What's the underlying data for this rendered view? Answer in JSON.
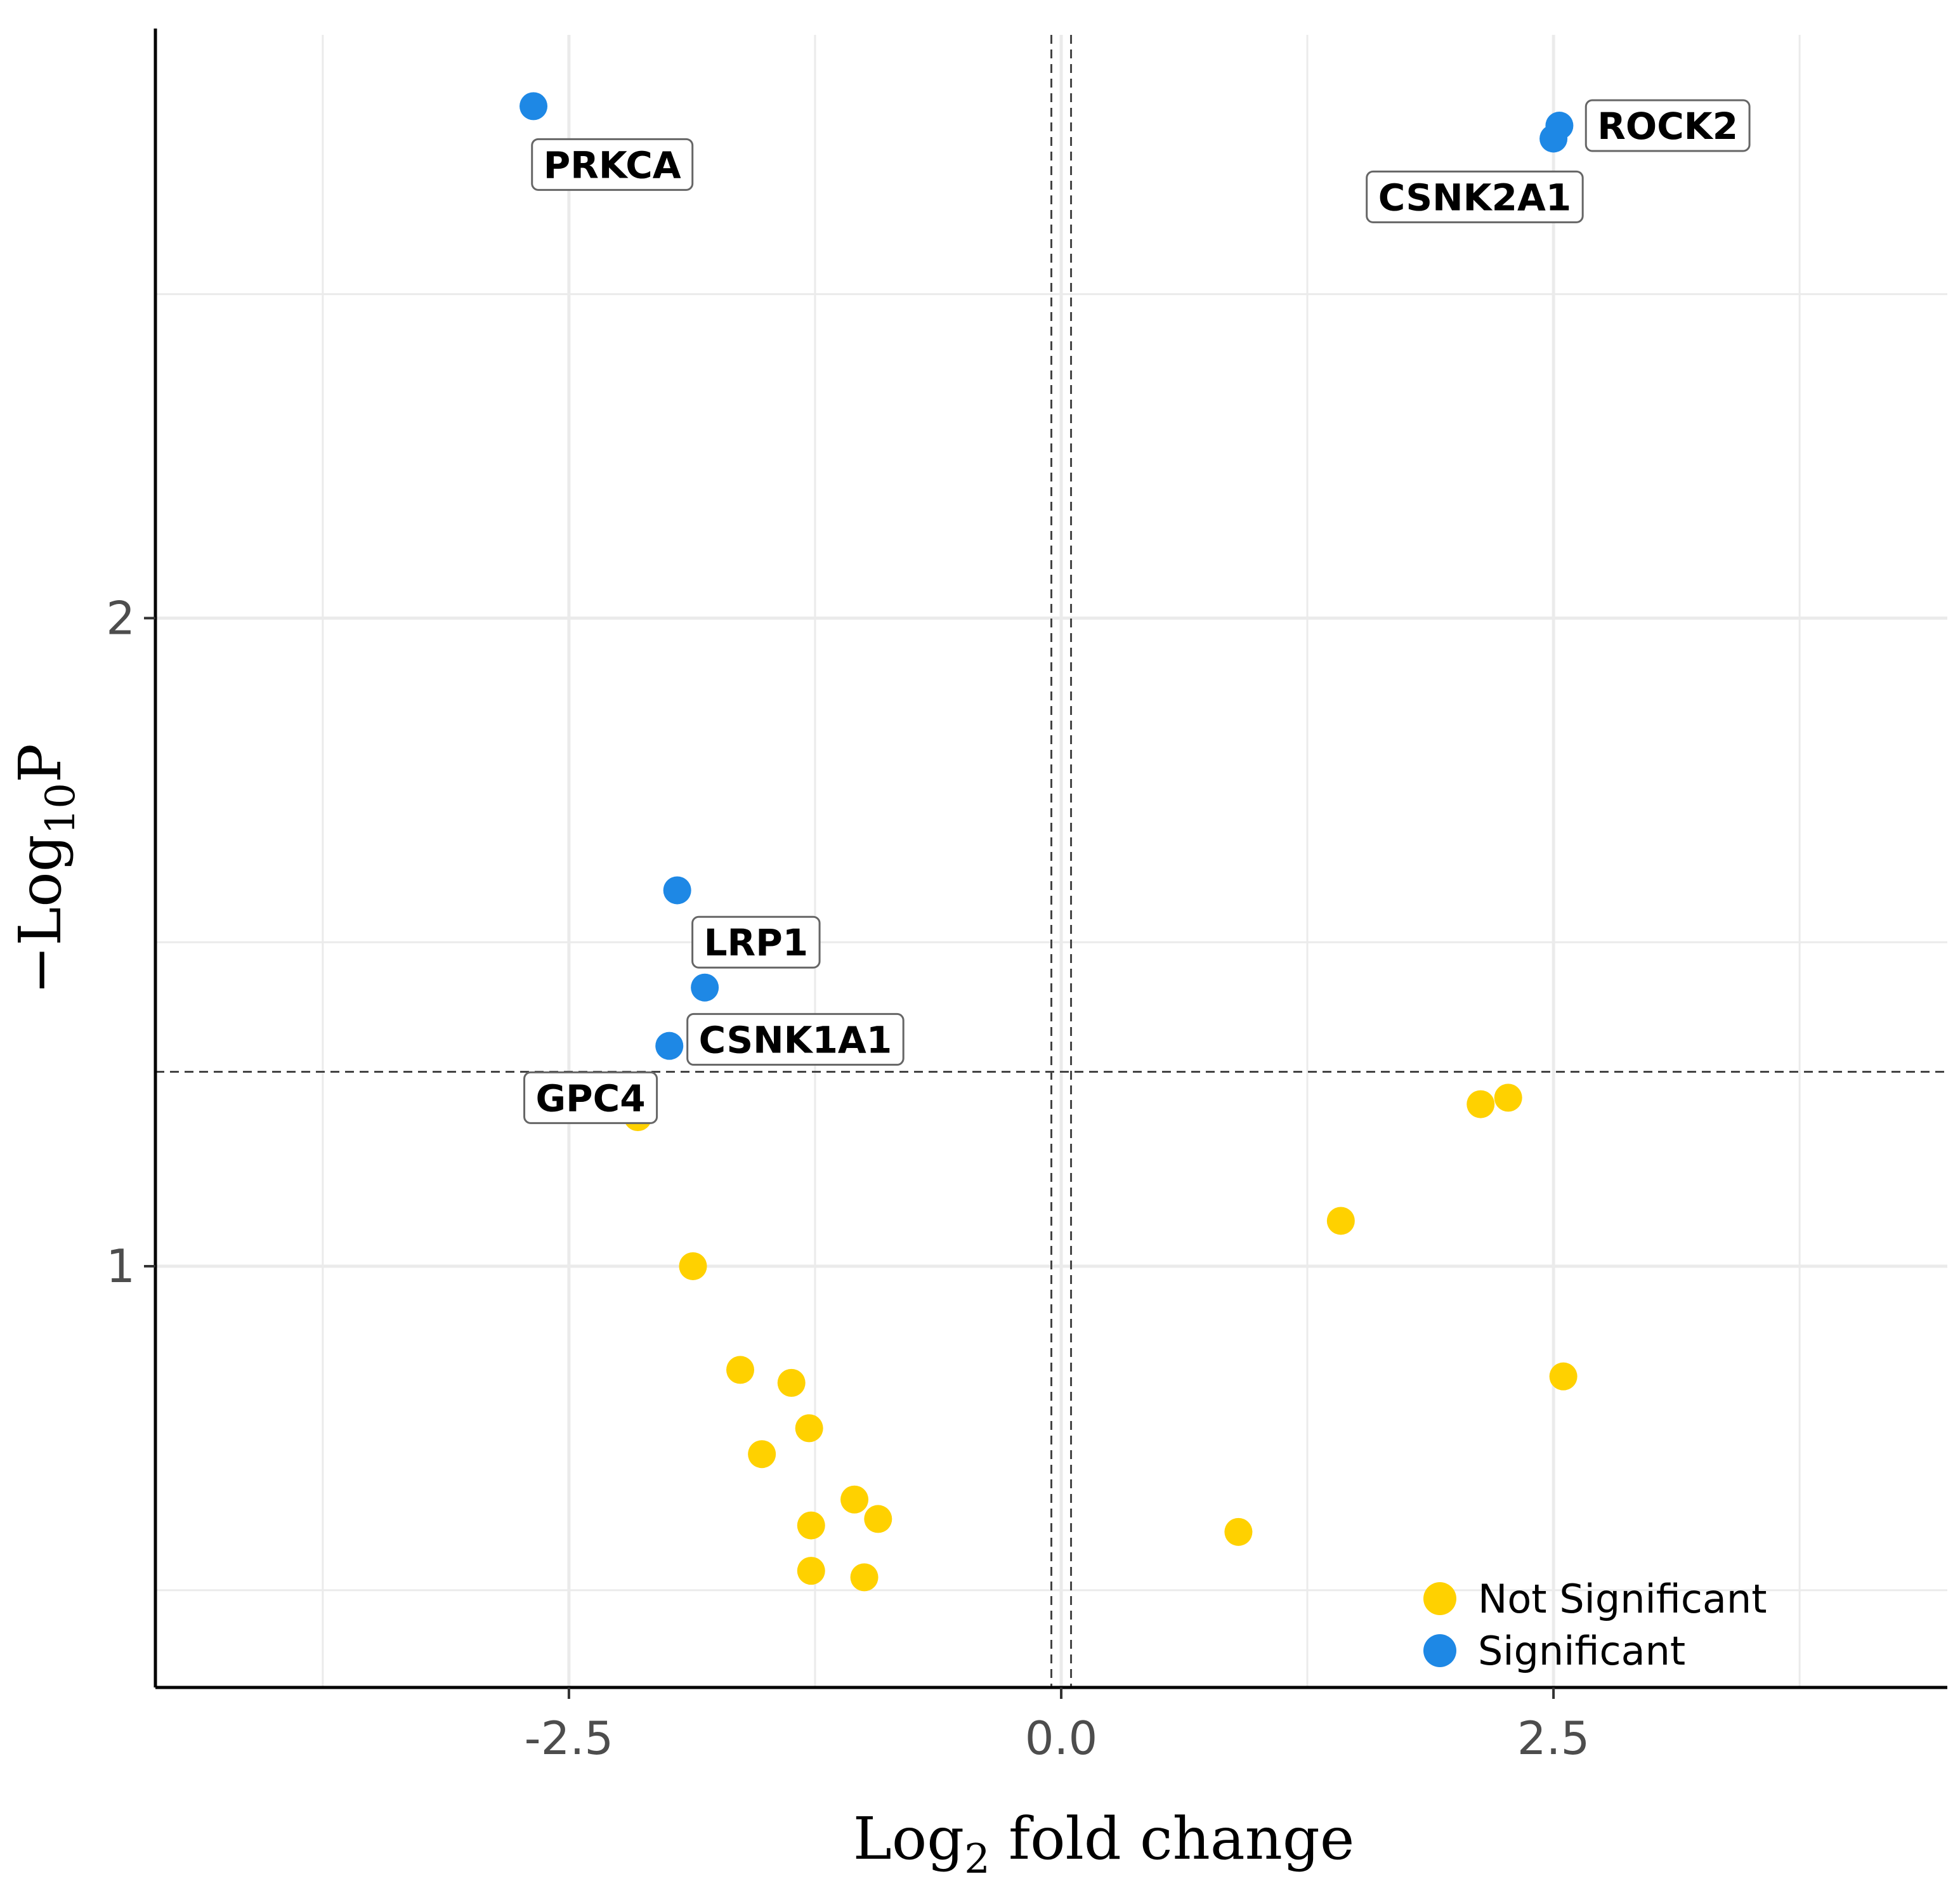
{
  "chart_data": {
    "type": "scatter",
    "title": "",
    "xlabel": {
      "base": "Log",
      "sub": "2",
      "rest": " fold change"
    },
    "ylabel": {
      "prefix": "−Log",
      "sub": "10",
      "rest": "P"
    },
    "xlim": [
      -4.6,
      4.5
    ],
    "ylim": [
      0.35,
      2.9
    ],
    "x_ticks": [
      -2.5,
      0.0,
      2.5
    ],
    "x_tick_labels": [
      "-2.5",
      "0.0",
      "2.5"
    ],
    "y_ticks": [
      1,
      2
    ],
    "y_tick_labels": [
      "1",
      "2"
    ],
    "x_minor_gridlines": [
      -3.75,
      -1.25,
      1.25,
      3.75
    ],
    "y_minor_gridlines": [
      0.5,
      1.5,
      2.5
    ],
    "fc_cutoff": [
      -0.05,
      0.05
    ],
    "p_cutoff": 1.3,
    "grid": true,
    "legend_position": "bottom-right",
    "colors": {
      "Not Significant": "#FFD100",
      "Significant": "#1E88E5"
    },
    "series": [
      {
        "name": "Not Significant",
        "color": "#FFD100",
        "points": [
          {
            "x": -2.15,
            "y": 1.23
          },
          {
            "x": -1.87,
            "y": 1.0
          },
          {
            "x": -1.63,
            "y": 0.84
          },
          {
            "x": -1.37,
            "y": 0.82
          },
          {
            "x": -1.28,
            "y": 0.75
          },
          {
            "x": -1.52,
            "y": 0.71
          },
          {
            "x": -1.05,
            "y": 0.64
          },
          {
            "x": -0.93,
            "y": 0.61
          },
          {
            "x": -1.27,
            "y": 0.6
          },
          {
            "x": -1.27,
            "y": 0.53
          },
          {
            "x": -1.0,
            "y": 0.52
          },
          {
            "x": 0.9,
            "y": 0.59
          },
          {
            "x": 1.42,
            "y": 1.07
          },
          {
            "x": 2.13,
            "y": 1.25
          },
          {
            "x": 2.27,
            "y": 1.26
          },
          {
            "x": 2.55,
            "y": 0.83
          }
        ]
      },
      {
        "name": "Significant",
        "color": "#1E88E5",
        "points": [
          {
            "x": -2.68,
            "y": 2.79
          },
          {
            "x": -1.95,
            "y": 1.58
          },
          {
            "x": -1.81,
            "y": 1.43
          },
          {
            "x": -1.99,
            "y": 1.34
          },
          {
            "x": 2.53,
            "y": 2.76
          },
          {
            "x": 2.5,
            "y": 2.74
          }
        ]
      }
    ],
    "labels": [
      {
        "text": "PRKCA",
        "x": -2.28,
        "y": 2.7
      },
      {
        "text": "ROCK2",
        "x": 3.08,
        "y": 2.76
      },
      {
        "text": "CSNK2A1",
        "x": 2.1,
        "y": 2.65
      },
      {
        "text": "LRP1",
        "x": -1.55,
        "y": 1.5
      },
      {
        "text": "CSNK1A1",
        "x": -1.35,
        "y": 1.35
      },
      {
        "text": "GPC4",
        "x": -2.39,
        "y": 1.26
      }
    ]
  }
}
